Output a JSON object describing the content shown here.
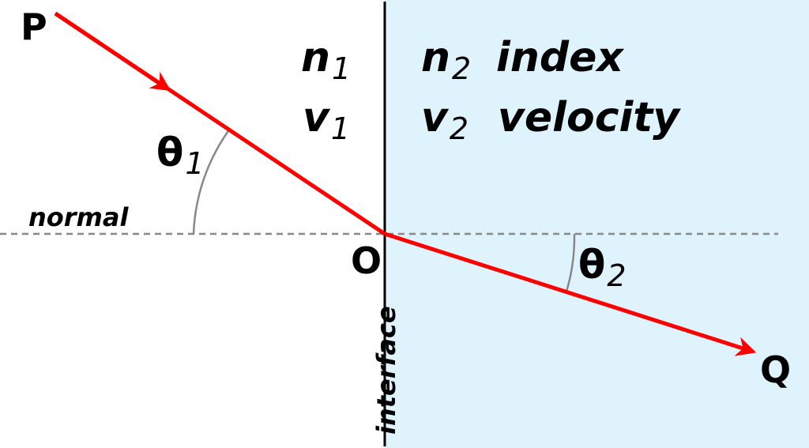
{
  "colors": {
    "medium2_fill": "#dff3fd",
    "ray": "#ff0000",
    "interface_line": "#000000",
    "normal_line": "#888888",
    "angle_arc": "#888888"
  },
  "points": {
    "start": "P",
    "origin": "O",
    "end": "Q"
  },
  "medium1": {
    "index_symbol": "n",
    "index_sub": "1",
    "velocity_symbol": "v",
    "velocity_sub": "1"
  },
  "medium2": {
    "index_symbol": "n",
    "index_sub": "2",
    "index_word": "index",
    "velocity_symbol": "v",
    "velocity_sub": "2",
    "velocity_word": "velocity"
  },
  "angles": {
    "incident_symbol": "θ",
    "incident_sub": "1",
    "refracted_symbol": "θ",
    "refracted_sub": "2"
  },
  "normal_label": "normal",
  "interface_label": "interface"
}
